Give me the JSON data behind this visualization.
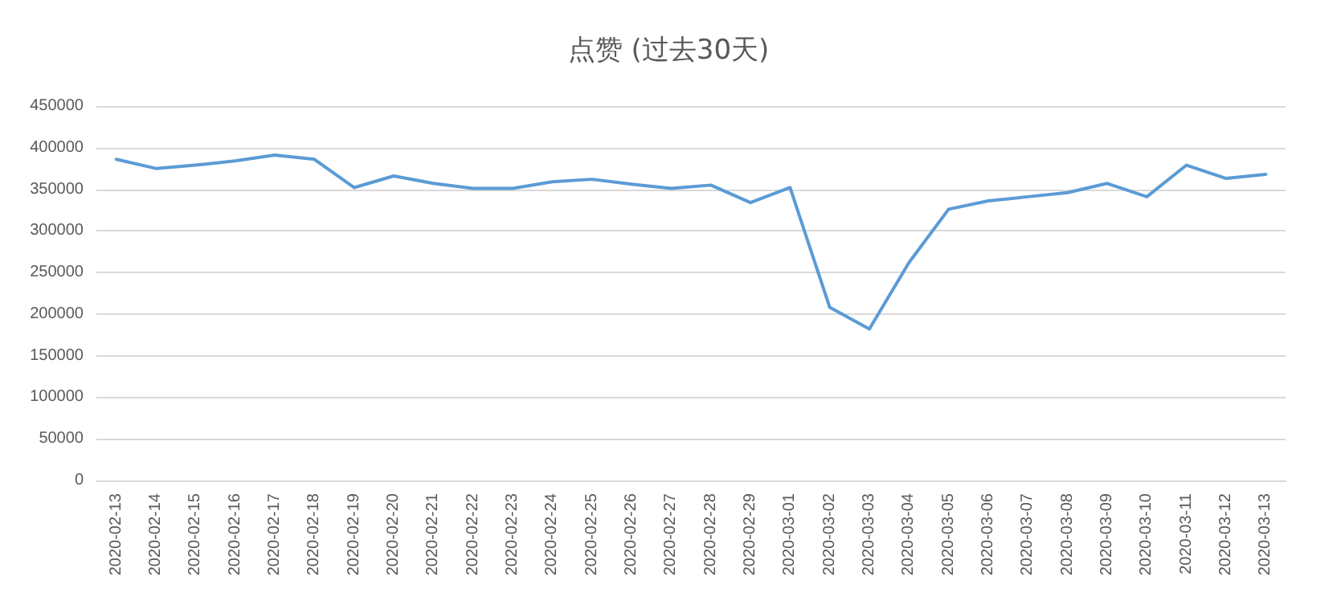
{
  "chart_data": {
    "type": "line",
    "title": "点赞 (过去30天)",
    "categories": [
      "2020-02-13",
      "2020-02-14",
      "2020-02-15",
      "2020-02-16",
      "2020-02-17",
      "2020-02-18",
      "2020-02-19",
      "2020-02-20",
      "2020-02-21",
      "2020-02-22",
      "2020-02-23",
      "2020-02-24",
      "2020-02-25",
      "2020-02-26",
      "2020-02-27",
      "2020-02-28",
      "2020-02-29",
      "2020-03-01",
      "2020-03-02",
      "2020-03-03",
      "2020-03-04",
      "2020-03-05",
      "2020-03-06",
      "2020-03-07",
      "2020-03-08",
      "2020-03-09",
      "2020-03-10",
      "2020-03-11",
      "2020-03-12",
      "2020-03-13"
    ],
    "series": [
      {
        "color": "#5b9bd5",
        "values": [
          386000,
          375000,
          379000,
          384000,
          391000,
          386000,
          352000,
          366000,
          357000,
          351000,
          351000,
          359000,
          362000,
          356000,
          351000,
          355000,
          334000,
          352000,
          208000,
          182000,
          262000,
          326000,
          336000,
          341000,
          346000,
          357000,
          341000,
          379000,
          363000,
          368000
        ]
      }
    ],
    "ylim": [
      0,
      450000
    ],
    "yticks": [
      0,
      50000,
      100000,
      150000,
      200000,
      250000,
      300000,
      350000,
      400000,
      450000
    ],
    "grid": "y",
    "marker": "none",
    "line_style": "solid"
  }
}
